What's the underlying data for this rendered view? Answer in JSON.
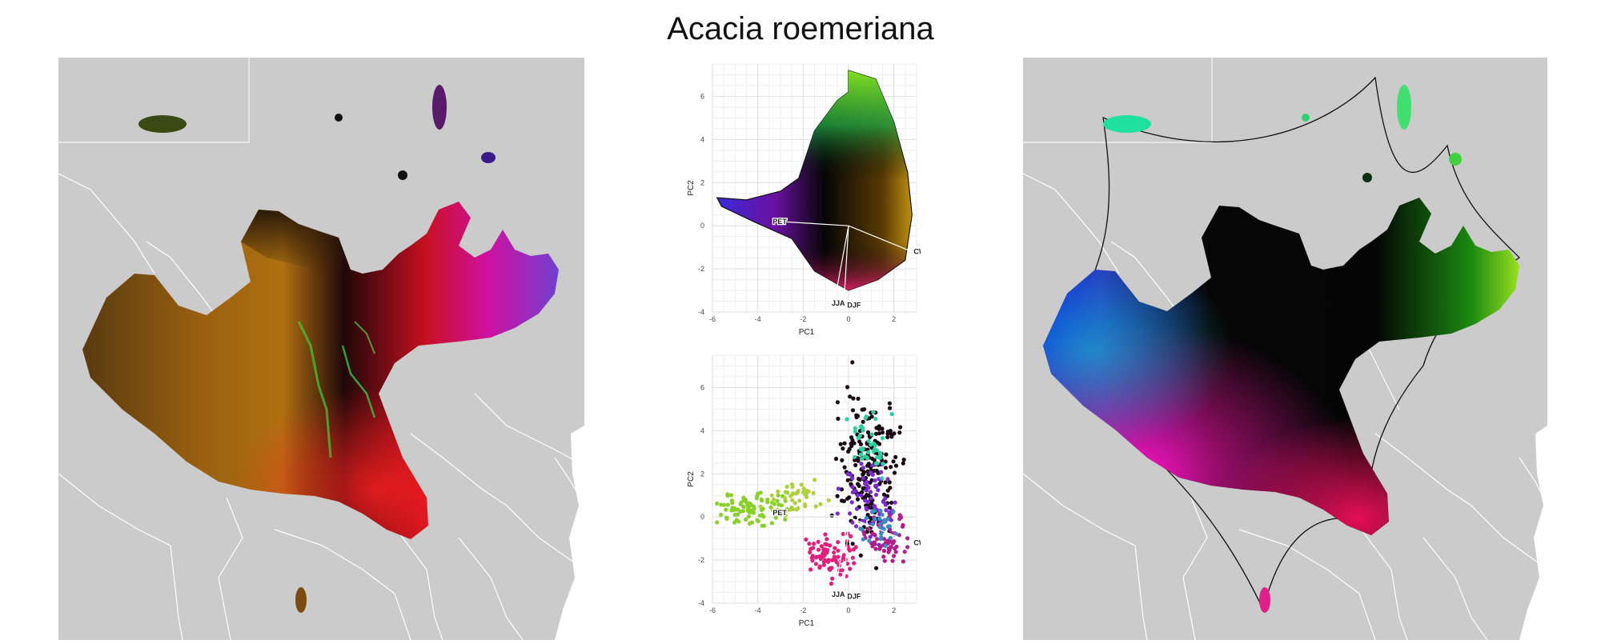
{
  "figure": {
    "title": "Acacia roemeriana"
  },
  "chart_data": [
    {
      "type": "scatter",
      "panel": "pca-top",
      "xlabel": "PC1",
      "ylabel": "PC2",
      "xlim": [
        -6,
        3
      ],
      "ylim": [
        -4,
        7.5
      ],
      "xticks": [
        -6,
        -4,
        -2,
        0,
        2
      ],
      "yticks": [
        -4,
        -2,
        0,
        2,
        4,
        6
      ],
      "grid": true,
      "hull": [
        [
          -5.8,
          1.3
        ],
        [
          -4.5,
          1.2
        ],
        [
          -3,
          1.6
        ],
        [
          -2.2,
          2.2
        ],
        [
          -1.5,
          4.4
        ],
        [
          -0.5,
          5.8
        ],
        [
          0,
          6.2
        ],
        [
          0,
          7.2
        ],
        [
          1.2,
          6.8
        ],
        [
          2,
          4.8
        ],
        [
          2.6,
          2.5
        ],
        [
          2.8,
          0.5
        ],
        [
          2.5,
          -1.6
        ],
        [
          1.3,
          -2.5
        ],
        [
          0,
          -3.0
        ],
        [
          -1.5,
          -2.1
        ],
        [
          -2.5,
          -0.6
        ],
        [
          -4.2,
          0.2
        ],
        [
          -5.6,
          0.9
        ]
      ],
      "loadings": [
        {
          "label": "PET",
          "x": -3.1,
          "y": 0.2
        },
        {
          "label": "CWD",
          "x": 2.8,
          "y": -1.2
        },
        {
          "label": "JJA",
          "x": -0.6,
          "y": -3.4
        },
        {
          "label": "DJF",
          "x": -0.2,
          "y": -3.5
        }
      ]
    },
    {
      "type": "scatter",
      "panel": "pca-bottom",
      "xlabel": "PC1",
      "ylabel": "PC2",
      "xlim": [
        -6,
        3
      ],
      "ylim": [
        -4,
        7.5
      ],
      "xticks": [
        -6,
        -4,
        -2,
        0,
        2
      ],
      "yticks": [
        -4,
        -2,
        0,
        2,
        4,
        6
      ],
      "grid": true,
      "loadings": [
        {
          "label": "PET",
          "x": -3.1,
          "y": 0.2
        },
        {
          "label": "CWD",
          "x": 2.8,
          "y": -1.2
        },
        {
          "label": "JJA",
          "x": -0.6,
          "y": -3.4
        },
        {
          "label": "DJF",
          "x": -0.2,
          "y": -3.5
        }
      ],
      "clusters": [
        {
          "color": "#8ad02a",
          "cx": -4.0,
          "cy": 0.4,
          "sx": 1.2,
          "sy": 0.5,
          "n": 90
        },
        {
          "color": "#b0d040",
          "cx": -2.3,
          "cy": 0.9,
          "sx": 0.8,
          "sy": 0.5,
          "n": 40
        },
        {
          "color": "#e0207a",
          "cx": -0.6,
          "cy": -1.8,
          "sx": 0.8,
          "sy": 0.6,
          "n": 80
        },
        {
          "color": "#1a0a14",
          "cx": 0.9,
          "cy": 2.2,
          "sx": 0.9,
          "sy": 2.2,
          "n": 220
        },
        {
          "color": "#7a2ad0",
          "cx": 1.0,
          "cy": 0.8,
          "sx": 0.8,
          "sy": 1.2,
          "n": 70
        },
        {
          "color": "#2ad0a0",
          "cx": 1.0,
          "cy": 3.5,
          "sx": 0.7,
          "sy": 1.0,
          "n": 40
        },
        {
          "color": "#b0208a",
          "cx": 1.6,
          "cy": -0.8,
          "sx": 0.6,
          "sy": 0.8,
          "n": 60
        },
        {
          "color": "#3a8cc0",
          "cx": 1.4,
          "cy": -0.4,
          "sx": 0.6,
          "sy": 0.6,
          "n": 30
        }
      ]
    }
  ]
}
